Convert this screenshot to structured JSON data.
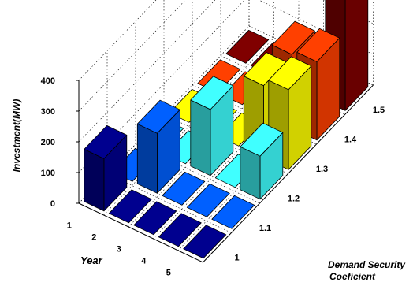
{
  "chart_data": {
    "type": "bar3d",
    "title": "",
    "zlabel": "Investment(MW)",
    "xlabel": "Year",
    "ylabel_line1": "Demand Security",
    "ylabel_line2": "Coeficient",
    "zlim": [
      0,
      400
    ],
    "z_ticks": [
      "0",
      "100",
      "200",
      "300",
      "400"
    ],
    "x_ticks": [
      "1",
      "2",
      "3",
      "4",
      "5"
    ],
    "y_ticks": [
      "1",
      "1.1",
      "1.2",
      "1.3",
      "1.4",
      "1.5"
    ],
    "grid": true,
    "colors": [
      "#00008f",
      "#0060ff",
      "#40ffff",
      "#ffff00",
      "#ff4000",
      "#800000"
    ],
    "series": [
      {
        "values": [
          170,
          0,
          0,
          0,
          0
        ]
      },
      {
        "values": [
          0,
          195,
          0,
          0,
          0
        ]
      },
      {
        "values": [
          0,
          0,
          215,
          0,
          140
        ]
      },
      {
        "values": [
          0,
          0,
          0,
          235,
          260
        ]
      },
      {
        "values": [
          0,
          0,
          0,
          240,
          255
        ]
      },
      {
        "values": [
          0,
          0,
          0,
          0,
          390
        ]
      }
    ]
  }
}
